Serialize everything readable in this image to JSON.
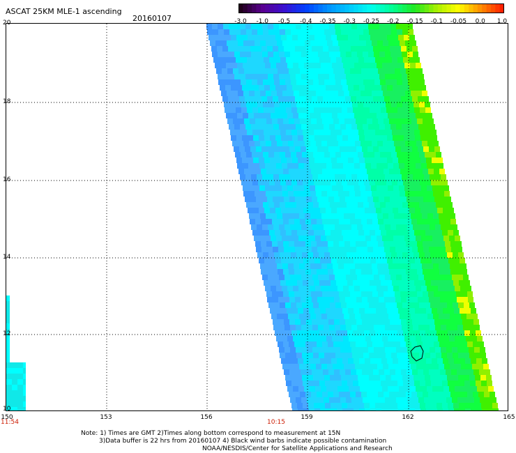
{
  "header": {
    "title": "ASCAT 25KM MLE-1 ascending",
    "date": "20160107"
  },
  "colorbar": {
    "labels": [
      "-3.0",
      "-1.0",
      "-0.5",
      "-0.4",
      "-0.35",
      "-0.3",
      "-0.25",
      "-0.2",
      "-0.15",
      "-0.1",
      "-0.05",
      "0.0",
      "1.0"
    ],
    "colors": [
      "#20001a",
      "#5a0090",
      "#3a10d0",
      "#0040ff",
      "#0090ff",
      "#00c8ff",
      "#00ffee",
      "#00ff90",
      "#20e820",
      "#a8f000",
      "#ffff00",
      "#ff9000",
      "#ff2000"
    ]
  },
  "axes": {
    "lat_labels": [
      "20",
      "18",
      "16",
      "14",
      "12",
      "10"
    ],
    "lon_labels": [
      "150",
      "153",
      "156",
      "159",
      "162",
      "165"
    ],
    "time_labels": [
      "11:54",
      "10:15"
    ]
  },
  "notes": {
    "line1": "Note: 1) Times are GMT 2)Times along bottom correspond to measurement at 15N",
    "line2": "3)Data buffer is 22 hrs from 20160107 4) Black wind barbs indicate possible contamination",
    "credit": "NOAA/NESDIS/Center for Satellite Applications and Research"
  }
}
